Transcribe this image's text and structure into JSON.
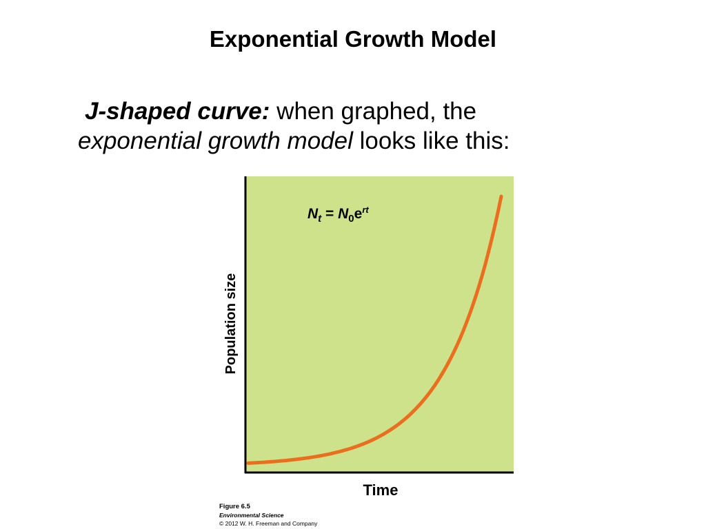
{
  "slide": {
    "title": "Exponential Growth Model",
    "subtitle": {
      "term": "J-shaped curve:",
      "line1_rest": " when graphed, the",
      "model_name": "exponential growth model",
      "line2_rest": " looks like this:"
    }
  },
  "equation": {
    "N": "N",
    "t_sub": "t",
    "eq": " = ",
    "N0": "N",
    "zero_sub": "0",
    "e": "e",
    "rt_sup": "rt"
  },
  "caption": {
    "figure": "Figure 6.5",
    "book": "Environmental Science",
    "copyright": "© 2012 W. H. Freeman and Company"
  },
  "colors": {
    "plot_background": "#cde28a",
    "curve": "#eb6e1f",
    "axis": "#000000"
  },
  "chart_data": {
    "type": "line",
    "xlabel": "Time",
    "ylabel": "Population size",
    "grid": false,
    "ticks": false,
    "legend": "none",
    "annotation": "Nt = N0e^rt",
    "series": [
      {
        "model": "exponential",
        "x": [
          0,
          0.1,
          0.2,
          0.3,
          0.4,
          0.5,
          0.6,
          0.7,
          0.8,
          0.9,
          1.0
        ],
        "y": [
          0,
          0.012,
          0.028,
          0.05,
          0.08,
          0.125,
          0.19,
          0.29,
          0.44,
          0.66,
          1.0
        ]
      }
    ],
    "xlim": [
      0,
      1
    ],
    "ylim": [
      -0.03,
      1.07
    ]
  }
}
